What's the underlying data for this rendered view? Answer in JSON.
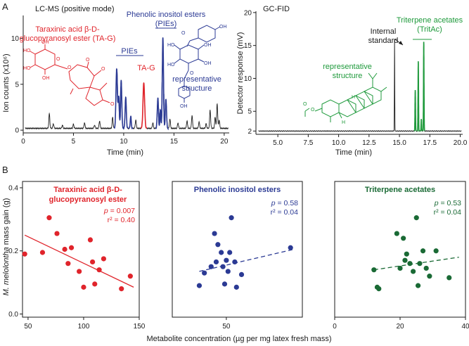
{
  "colors": {
    "ink": "#1a1a1a",
    "red": "#e0242b",
    "blue": "#2b3a94",
    "green": "#1f9a3c",
    "darkgreen": "#1a6a35"
  },
  "panels": {
    "a": "A",
    "b": "B"
  },
  "structure_labels": {
    "oh": "OH",
    "o": "O",
    "h": "H",
    "ho": "HO"
  },
  "chart_data": [
    {
      "id": "lcms",
      "type": "line",
      "title": "LC-MS (positive mode)",
      "xlabel": "Time (min)",
      "ylabel": "Ion counts (x10⁶)",
      "xlim": [
        0,
        20.5
      ],
      "ylim": [
        -0.3,
        12.5
      ],
      "xticks": [
        0,
        5,
        10,
        15,
        20
      ],
      "yticks": [
        0,
        5,
        10
      ],
      "baseline": 0.2,
      "peaks": [
        {
          "t": 2.6,
          "h": 1.6,
          "w": 0.05,
          "color": "ink"
        },
        {
          "t": 3.0,
          "h": 0.5,
          "w": 0.05,
          "color": "ink"
        },
        {
          "t": 3.9,
          "h": 0.35,
          "w": 0.05,
          "color": "ink"
        },
        {
          "t": 5.0,
          "h": 0.45,
          "w": 0.05,
          "color": "ink"
        },
        {
          "t": 6.1,
          "h": 0.6,
          "w": 0.05,
          "color": "ink"
        },
        {
          "t": 7.1,
          "h": 0.35,
          "w": 0.05,
          "color": "ink"
        },
        {
          "t": 7.6,
          "h": 0.8,
          "w": 0.05,
          "color": "ink"
        },
        {
          "t": 8.9,
          "h": 1.2,
          "w": 0.05,
          "color": "ink"
        },
        {
          "t": 9.3,
          "h": 6.5,
          "w": 0.07,
          "color": "blue"
        },
        {
          "t": 9.5,
          "h": 3.4,
          "w": 0.06,
          "color": "blue"
        },
        {
          "t": 9.75,
          "h": 5.2,
          "w": 0.06,
          "color": "blue"
        },
        {
          "t": 10.2,
          "h": 3.4,
          "w": 0.06,
          "color": "blue"
        },
        {
          "t": 10.7,
          "h": 1.3,
          "w": 0.05,
          "color": "blue"
        },
        {
          "t": 11.2,
          "h": 0.9,
          "w": 0.05,
          "color": "ink"
        },
        {
          "t": 12.0,
          "h": 5.0,
          "w": 0.08,
          "color": "red"
        },
        {
          "t": 12.9,
          "h": 0.6,
          "w": 0.05,
          "color": "ink"
        },
        {
          "t": 13.4,
          "h": 3.3,
          "w": 0.06,
          "color": "blue"
        },
        {
          "t": 13.65,
          "h": 2.0,
          "w": 0.05,
          "color": "blue"
        },
        {
          "t": 13.9,
          "h": 9.9,
          "w": 0.06,
          "color": "blue"
        },
        {
          "t": 14.2,
          "h": 3.2,
          "w": 0.06,
          "color": "blue"
        },
        {
          "t": 14.6,
          "h": 1.0,
          "w": 0.05,
          "color": "ink"
        },
        {
          "t": 15.4,
          "h": 0.6,
          "w": 0.05,
          "color": "ink"
        },
        {
          "t": 16.3,
          "h": 0.8,
          "w": 0.05,
          "color": "ink"
        },
        {
          "t": 16.8,
          "h": 1.4,
          "w": 0.05,
          "color": "ink"
        },
        {
          "t": 17.5,
          "h": 0.7,
          "w": 0.05,
          "color": "ink"
        },
        {
          "t": 18.2,
          "h": 0.5,
          "w": 0.05,
          "color": "ink"
        },
        {
          "t": 18.6,
          "h": 2.0,
          "w": 0.05,
          "color": "ink"
        },
        {
          "t": 19.1,
          "h": 1.2,
          "w": 0.05,
          "color": "ink"
        },
        {
          "t": 19.3,
          "h": 2.7,
          "w": 0.05,
          "color": "ink"
        },
        {
          "t": 19.5,
          "h": 0.9,
          "w": 0.05,
          "color": "ink"
        }
      ],
      "annotations": {
        "ta_name": [
          "Taraxinic acid β-D-",
          "glucopyranosyl ester (TA-G)"
        ],
        "pie_name": [
          "Phenolic inositol esters",
          "(PIEs)"
        ],
        "pies_bracket": "PIEs",
        "tag": "TA-G",
        "representative": [
          "representative",
          "structure"
        ]
      }
    },
    {
      "id": "gcfid",
      "type": "line",
      "title": "GC-FID",
      "xlabel": "Time (min)",
      "ylabel": "Detector response (mV)",
      "xlim": [
        3.2,
        20.2
      ],
      "ylim": [
        1.5,
        20.2
      ],
      "xticks": [
        5.0,
        7.5,
        10.0,
        12.5,
        15.0,
        17.5,
        20.0
      ],
      "yticks": [
        2,
        5,
        10,
        15,
        20
      ],
      "baseline": 2.0,
      "peaks": [
        {
          "t": 14.6,
          "h": 14.0,
          "w": 0.015,
          "color": "ink"
        },
        {
          "t": 16.3,
          "h": 6.2,
          "w": 0.02,
          "color": "green"
        },
        {
          "t": 16.55,
          "h": 10.6,
          "w": 0.02,
          "color": "green"
        },
        {
          "t": 16.8,
          "h": 1.8,
          "w": 0.02,
          "color": "green"
        },
        {
          "t": 17.0,
          "h": 13.5,
          "w": 0.02,
          "color": "green"
        }
      ],
      "annotations": {
        "internal": [
          "Internal",
          "standard"
        ],
        "tritac": [
          "Triterpene acetates",
          "(TritAc)"
        ],
        "representative": [
          "representative",
          "structure"
        ]
      }
    },
    {
      "id": "scatter_tag",
      "type": "scatter",
      "title": [
        "Taraxinic acid β-D-",
        "glucopyranosyl ester"
      ],
      "color": "red",
      "xlim": [
        45,
        150
      ],
      "xticks": [
        50,
        100,
        150
      ],
      "ylim": [
        -0.01,
        0.42
      ],
      "yticks": [
        0.0,
        0.2,
        0.4
      ],
      "ylabel_italic": "M. melolontha",
      "ylabel_rest": " mass gain (g)",
      "p": "0.007",
      "r2": "0.40",
      "fit": {
        "style": "solid",
        "x": [
          47,
          145
        ],
        "y": [
          0.25,
          0.085
        ]
      },
      "points": [
        {
          "x": 47,
          "y": 0.19
        },
        {
          "x": 63,
          "y": 0.195
        },
        {
          "x": 69,
          "y": 0.305
        },
        {
          "x": 76,
          "y": 0.255
        },
        {
          "x": 83,
          "y": 0.205
        },
        {
          "x": 86,
          "y": 0.16
        },
        {
          "x": 89,
          "y": 0.21
        },
        {
          "x": 96,
          "y": 0.135
        },
        {
          "x": 100,
          "y": 0.085
        },
        {
          "x": 106,
          "y": 0.235
        },
        {
          "x": 108,
          "y": 0.165
        },
        {
          "x": 110,
          "y": 0.095
        },
        {
          "x": 114,
          "y": 0.14
        },
        {
          "x": 118,
          "y": 0.175
        },
        {
          "x": 134,
          "y": 0.08
        },
        {
          "x": 142,
          "y": 0.12
        }
      ]
    },
    {
      "id": "scatter_pie",
      "type": "scatter",
      "title": [
        "Phenolic inositol esters"
      ],
      "color": "blue",
      "xlim": [
        18,
        95
      ],
      "xticks": [
        50
      ],
      "ylim": [
        -0.01,
        0.42
      ],
      "yticks": [],
      "p": "0.58",
      "r2": "0.04",
      "fit": {
        "style": "dashed",
        "x": [
          34,
          90
        ],
        "y": [
          0.135,
          0.205
        ]
      },
      "points": [
        {
          "x": 34,
          "y": 0.09
        },
        {
          "x": 37,
          "y": 0.13
        },
        {
          "x": 41,
          "y": 0.15
        },
        {
          "x": 43,
          "y": 0.255
        },
        {
          "x": 44,
          "y": 0.165
        },
        {
          "x": 45,
          "y": 0.22
        },
        {
          "x": 47,
          "y": 0.195
        },
        {
          "x": 48,
          "y": 0.15
        },
        {
          "x": 49,
          "y": 0.095
        },
        {
          "x": 50,
          "y": 0.17
        },
        {
          "x": 51,
          "y": 0.135
        },
        {
          "x": 52,
          "y": 0.195
        },
        {
          "x": 53,
          "y": 0.305
        },
        {
          "x": 55,
          "y": 0.165
        },
        {
          "x": 56,
          "y": 0.085
        },
        {
          "x": 59,
          "y": 0.125
        },
        {
          "x": 88,
          "y": 0.21
        }
      ]
    },
    {
      "id": "scatter_tritac",
      "type": "scatter",
      "title": [
        "Triterpene acetates"
      ],
      "color": "darkgreen",
      "xlim": [
        0,
        40
      ],
      "xticks": [
        0,
        20,
        40
      ],
      "ylim": [
        -0.01,
        0.42
      ],
      "yticks": [],
      "p": "0.53",
      "r2": "0.04",
      "fit": {
        "style": "dashed",
        "x": [
          12,
          38
        ],
        "y": [
          0.14,
          0.18
        ]
      },
      "points": [
        {
          "x": 12,
          "y": 0.14
        },
        {
          "x": 13,
          "y": 0.085
        },
        {
          "x": 13.5,
          "y": 0.08
        },
        {
          "x": 19,
          "y": 0.255
        },
        {
          "x": 20,
          "y": 0.145
        },
        {
          "x": 21,
          "y": 0.24
        },
        {
          "x": 21.5,
          "y": 0.17
        },
        {
          "x": 22,
          "y": 0.19
        },
        {
          "x": 23,
          "y": 0.16
        },
        {
          "x": 24,
          "y": 0.135
        },
        {
          "x": 25,
          "y": 0.305
        },
        {
          "x": 25.5,
          "y": 0.09
        },
        {
          "x": 26,
          "y": 0.16
        },
        {
          "x": 27,
          "y": 0.2
        },
        {
          "x": 28,
          "y": 0.145
        },
        {
          "x": 29,
          "y": 0.12
        },
        {
          "x": 31,
          "y": 0.2
        },
        {
          "x": 35,
          "y": 0.115
        }
      ]
    }
  ],
  "shared_xlabel": "Metabolite concentration (µg per mg latex fresh mass)"
}
